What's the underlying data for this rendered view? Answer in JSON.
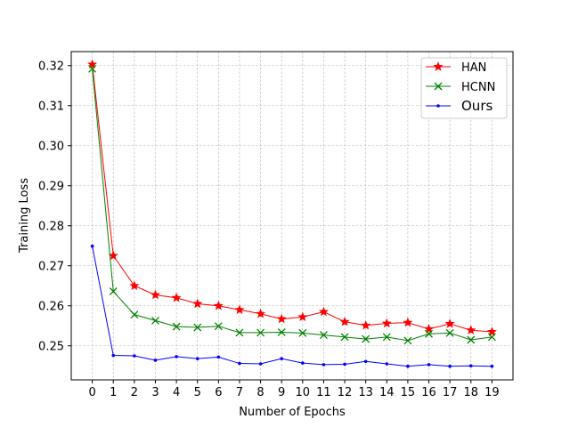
{
  "chart_data": {
    "type": "line",
    "title": "",
    "xlabel": "Number of Epochs",
    "ylabel": "Training Loss",
    "xlim": [
      -1,
      20
    ],
    "ylim": [
      0.2415,
      0.3235
    ],
    "grid": true,
    "legend_position": "top-right",
    "x": [
      0,
      1,
      2,
      3,
      4,
      5,
      6,
      7,
      8,
      9,
      10,
      11,
      12,
      13,
      14,
      15,
      16,
      17,
      18,
      19
    ],
    "xticks": [
      "0",
      "1",
      "2",
      "3",
      "4",
      "5",
      "6",
      "7",
      "8",
      "9",
      "10",
      "11",
      "12",
      "13",
      "14",
      "15",
      "16",
      "17",
      "18",
      "19"
    ],
    "yticks": [
      "0.25",
      "0.26",
      "0.27",
      "0.28",
      "0.29",
      "0.30",
      "0.31",
      "0.32"
    ],
    "ytick_values": [
      0.25,
      0.26,
      0.27,
      0.28,
      0.29,
      0.3,
      0.31,
      0.32
    ],
    "series": [
      {
        "name": "HAN",
        "color": "#ff0000",
        "marker": "star",
        "values": [
          0.3203,
          0.2725,
          0.265,
          0.2627,
          0.262,
          0.2605,
          0.26,
          0.259,
          0.258,
          0.2567,
          0.2572,
          0.2585,
          0.256,
          0.2551,
          0.2556,
          0.2558,
          0.2542,
          0.2555,
          0.2539,
          0.2535
        ]
      },
      {
        "name": "HCNN",
        "color": "#008000",
        "marker": "x",
        "values": [
          0.3192,
          0.2636,
          0.2578,
          0.2563,
          0.2548,
          0.2546,
          0.2549,
          0.2533,
          0.2533,
          0.2534,
          0.2532,
          0.2527,
          0.2522,
          0.2517,
          0.2522,
          0.2513,
          0.253,
          0.2532,
          0.2515,
          0.2522
        ]
      },
      {
        "name": "Ours",
        "color": "#0000ff",
        "marker": "dot",
        "values": [
          0.2749,
          0.2476,
          0.2475,
          0.2464,
          0.2473,
          0.2468,
          0.2472,
          0.2456,
          0.2455,
          0.2468,
          0.2457,
          0.2453,
          0.2454,
          0.2461,
          0.2455,
          0.2449,
          0.2453,
          0.2449,
          0.245,
          0.2449
        ]
      }
    ]
  }
}
